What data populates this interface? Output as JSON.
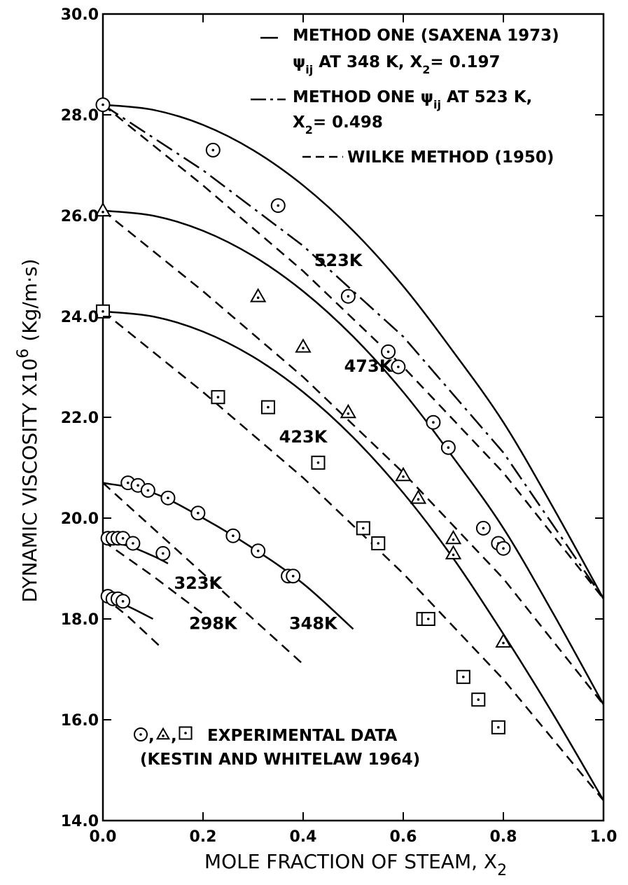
{
  "chart_data": {
    "type": "line",
    "xlabel": "MOLE FRACTION OF STEAM, X",
    "xlabel_sub": "2",
    "ylabel": "DYNAMIC VISCOSITY X10",
    "ylabel_sup": "6",
    "ylabel_unit": "(Kg/m·s)",
    "xlim": [
      0.0,
      1.0
    ],
    "ylim": [
      14.0,
      30.0
    ],
    "x_ticks": [
      {
        "v": 0.0,
        "label": "0.0"
      },
      {
        "v": 0.2,
        "label": "0.2"
      },
      {
        "v": 0.4,
        "label": "0.4"
      },
      {
        "v": 0.6,
        "label": "0.6"
      },
      {
        "v": 0.8,
        "label": "0.8"
      },
      {
        "v": 1.0,
        "label": "1.0"
      }
    ],
    "y_ticks": [
      {
        "v": 14.0,
        "label": "14.0"
      },
      {
        "v": 16.0,
        "label": "16.0"
      },
      {
        "v": 18.0,
        "label": "18.0"
      },
      {
        "v": 20.0,
        "label": "20.0"
      },
      {
        "v": 22.0,
        "label": "22.0"
      },
      {
        "v": 24.0,
        "label": "24.0"
      },
      {
        "v": 26.0,
        "label": "26.0"
      },
      {
        "v": 28.0,
        "label": "28.0"
      },
      {
        "v": 30.0,
        "label": "30.0"
      }
    ],
    "legend": {
      "position": "top-right",
      "entries": [
        {
          "style": "solid",
          "line1": "METHOD ONE (SAXENA 1973)",
          "line2_pre": "ψ",
          "line2_sub": "ij",
          "line2_mid": " AT 348 K,  X",
          "line2_sub2": "2",
          "line2_post": "= 0.197"
        },
        {
          "style": "dashdot",
          "line1_pre": "METHOD ONE  ψ",
          "line1_sub": "ij",
          "line1_post": "  AT 523 K,",
          "line2_pre": "X",
          "line2_sub": "2",
          "line2_post": "= 0.498"
        },
        {
          "style": "dashed",
          "line1": "WILKE METHOD (1950)"
        }
      ]
    },
    "experimental_legend": {
      "markers": [
        "circle",
        "triangle",
        "square"
      ],
      "line1": "EXPERIMENTAL DATA",
      "line2": "(KESTIN AND WHITELAW 1964)"
    },
    "series": [
      {
        "name": "523K",
        "style": "solid",
        "x": [
          0.0,
          0.1,
          0.2,
          0.3,
          0.4,
          0.5,
          0.6,
          0.7,
          0.8,
          0.9,
          1.0
        ],
        "y": [
          28.2,
          28.1,
          27.8,
          27.3,
          26.6,
          25.7,
          24.6,
          23.3,
          21.9,
          20.2,
          18.4
        ]
      },
      {
        "name": "523K",
        "style": "dashdot",
        "x": [
          0.0,
          0.2,
          0.4,
          0.6,
          0.8,
          1.0
        ],
        "y": [
          28.2,
          26.9,
          25.4,
          23.6,
          21.3,
          18.4
        ]
      },
      {
        "name": "523K",
        "style": "dashed",
        "x": [
          0.0,
          0.2,
          0.4,
          0.6,
          0.8,
          1.0
        ],
        "y": [
          28.2,
          26.6,
          24.9,
          23.0,
          20.9,
          18.4
        ]
      },
      {
        "name": "473K",
        "style": "solid",
        "x": [
          0.0,
          0.1,
          0.2,
          0.3,
          0.4,
          0.5,
          0.6,
          0.7,
          0.8,
          0.9,
          1.0
        ],
        "y": [
          26.1,
          26.0,
          25.7,
          25.2,
          24.5,
          23.6,
          22.5,
          21.2,
          19.8,
          18.1,
          16.3
        ]
      },
      {
        "name": "473K",
        "style": "dashed",
        "x": [
          0.0,
          0.2,
          0.4,
          0.6,
          0.8,
          1.0
        ],
        "y": [
          26.1,
          24.5,
          22.8,
          20.9,
          18.8,
          16.3
        ]
      },
      {
        "name": "423K",
        "style": "solid",
        "x": [
          0.0,
          0.1,
          0.2,
          0.3,
          0.4,
          0.5,
          0.6,
          0.7,
          0.8,
          0.9,
          1.0
        ],
        "y": [
          24.1,
          24.0,
          23.7,
          23.2,
          22.5,
          21.6,
          20.5,
          19.2,
          17.7,
          16.1,
          14.4
        ]
      },
      {
        "name": "423K",
        "style": "dashed",
        "x": [
          0.0,
          0.2,
          0.4,
          0.6,
          0.8,
          1.0
        ],
        "y": [
          24.1,
          22.5,
          20.8,
          18.9,
          16.8,
          14.4
        ]
      },
      {
        "name": "348K",
        "style": "solid",
        "x": [
          0.0,
          0.1,
          0.2,
          0.3,
          0.4,
          0.5
        ],
        "y": [
          20.7,
          20.5,
          20.0,
          19.4,
          18.7,
          17.8
        ]
      },
      {
        "name": "348K",
        "style": "dashed",
        "x": [
          0.0,
          0.1,
          0.2,
          0.3,
          0.4
        ],
        "y": [
          20.7,
          19.8,
          18.9,
          18.0,
          17.1
        ]
      },
      {
        "name": "323K",
        "style": "solid",
        "x": [
          0.0,
          0.05,
          0.1,
          0.13
        ],
        "y": [
          19.55,
          19.45,
          19.25,
          19.1
        ]
      },
      {
        "name": "323K",
        "style": "dashed",
        "x": [
          0.0,
          0.1,
          0.2
        ],
        "y": [
          19.55,
          18.85,
          18.1
        ]
      },
      {
        "name": "298K",
        "style": "solid",
        "x": [
          0.0,
          0.05,
          0.1
        ],
        "y": [
          18.45,
          18.25,
          18.0
        ]
      },
      {
        "name": "298K",
        "style": "dashed",
        "x": [
          0.0,
          0.05,
          0.12
        ],
        "y": [
          18.45,
          18.05,
          17.4
        ]
      }
    ],
    "curve_labels": [
      {
        "text": "523K",
        "x": 0.47,
        "y": 25.0
      },
      {
        "text": "473K",
        "x": 0.53,
        "y": 22.9
      },
      {
        "text": "423K",
        "x": 0.4,
        "y": 21.5
      },
      {
        "text": "348K",
        "x": 0.42,
        "y": 17.8
      },
      {
        "text": "323K",
        "x": 0.19,
        "y": 18.6
      },
      {
        "text": "298K",
        "x": 0.22,
        "y": 17.8
      }
    ],
    "experimental_points": [
      {
        "marker": "circle",
        "x": 0.0,
        "y": 28.2
      },
      {
        "marker": "circle",
        "x": 0.22,
        "y": 27.3
      },
      {
        "marker": "circle",
        "x": 0.35,
        "y": 26.2
      },
      {
        "marker": "circle",
        "x": 0.49,
        "y": 24.4
      },
      {
        "marker": "circle",
        "x": 0.57,
        "y": 23.3
      },
      {
        "marker": "circle",
        "x": 0.59,
        "y": 23.0
      },
      {
        "marker": "circle",
        "x": 0.66,
        "y": 21.9
      },
      {
        "marker": "circle",
        "x": 0.69,
        "y": 21.4
      },
      {
        "marker": "circle",
        "x": 0.76,
        "y": 19.8
      },
      {
        "marker": "circle",
        "x": 0.79,
        "y": 19.5
      },
      {
        "marker": "circle",
        "x": 0.8,
        "y": 19.4
      },
      {
        "marker": "circle",
        "x": 0.05,
        "y": 20.7
      },
      {
        "marker": "circle",
        "x": 0.07,
        "y": 20.65
      },
      {
        "marker": "circle",
        "x": 0.09,
        "y": 20.55
      },
      {
        "marker": "circle",
        "x": 0.13,
        "y": 20.4
      },
      {
        "marker": "circle",
        "x": 0.19,
        "y": 20.1
      },
      {
        "marker": "circle",
        "x": 0.26,
        "y": 19.65
      },
      {
        "marker": "circle",
        "x": 0.31,
        "y": 19.35
      },
      {
        "marker": "circle",
        "x": 0.37,
        "y": 18.85
      },
      {
        "marker": "circle",
        "x": 0.38,
        "y": 18.85
      },
      {
        "marker": "circle",
        "x": 0.01,
        "y": 19.6
      },
      {
        "marker": "circle",
        "x": 0.02,
        "y": 19.6
      },
      {
        "marker": "circle",
        "x": 0.03,
        "y": 19.6
      },
      {
        "marker": "circle",
        "x": 0.04,
        "y": 19.6
      },
      {
        "marker": "circle",
        "x": 0.06,
        "y": 19.5
      },
      {
        "marker": "circle",
        "x": 0.12,
        "y": 19.3
      },
      {
        "marker": "circle",
        "x": 0.01,
        "y": 18.45
      },
      {
        "marker": "circle",
        "x": 0.02,
        "y": 18.4
      },
      {
        "marker": "circle",
        "x": 0.03,
        "y": 18.4
      },
      {
        "marker": "circle",
        "x": 0.04,
        "y": 18.35
      },
      {
        "marker": "triangle",
        "x": 0.0,
        "y": 26.1
      },
      {
        "marker": "triangle",
        "x": 0.31,
        "y": 24.4
      },
      {
        "marker": "triangle",
        "x": 0.4,
        "y": 23.4
      },
      {
        "marker": "triangle",
        "x": 0.49,
        "y": 22.1
      },
      {
        "marker": "triangle",
        "x": 0.6,
        "y": 20.85
      },
      {
        "marker": "triangle",
        "x": 0.63,
        "y": 20.4
      },
      {
        "marker": "triangle",
        "x": 0.7,
        "y": 19.6
      },
      {
        "marker": "triangle",
        "x": 0.7,
        "y": 19.3
      },
      {
        "marker": "triangle",
        "x": 0.8,
        "y": 17.55
      },
      {
        "marker": "square",
        "x": 0.0,
        "y": 24.1
      },
      {
        "marker": "square",
        "x": 0.23,
        "y": 22.4
      },
      {
        "marker": "square",
        "x": 0.33,
        "y": 22.2
      },
      {
        "marker": "square",
        "x": 0.43,
        "y": 21.1
      },
      {
        "marker": "square",
        "x": 0.52,
        "y": 19.8
      },
      {
        "marker": "square",
        "x": 0.55,
        "y": 19.5
      },
      {
        "marker": "square",
        "x": 0.64,
        "y": 18.0
      },
      {
        "marker": "square",
        "x": 0.65,
        "y": 18.0
      },
      {
        "marker": "square",
        "x": 0.72,
        "y": 16.85
      },
      {
        "marker": "square",
        "x": 0.75,
        "y": 16.4
      },
      {
        "marker": "square",
        "x": 0.79,
        "y": 15.85
      }
    ]
  }
}
